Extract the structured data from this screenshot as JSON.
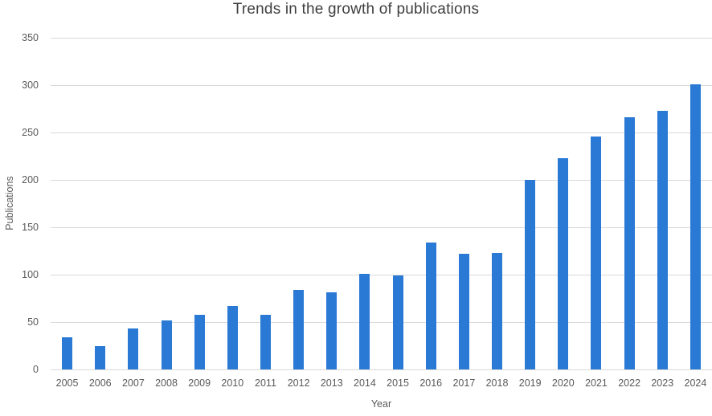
{
  "chart_data": {
    "type": "bar",
    "title": "Trends in the growth of publications",
    "xlabel": "Year",
    "ylabel": "Publications",
    "categories": [
      "2005",
      "2006",
      "2007",
      "2008",
      "2009",
      "2010",
      "2011",
      "2012",
      "2013",
      "2014",
      "2015",
      "2016",
      "2017",
      "2018",
      "2019",
      "2020",
      "2021",
      "2022",
      "2023",
      "2024"
    ],
    "values": [
      34,
      25,
      43,
      52,
      58,
      67,
      58,
      84,
      81,
      101,
      99,
      134,
      122,
      123,
      200,
      223,
      246,
      266,
      273,
      301
    ],
    "ylim": [
      0,
      350
    ],
    "yticks": [
      0,
      50,
      100,
      150,
      200,
      250,
      300,
      350
    ],
    "grid": "horizontal-only",
    "legend": "none"
  },
  "colors": {
    "bar": "#2979d5",
    "gridline": "#d9d9d9",
    "title_text": "#3f3f3f",
    "tick_text": "#595959"
  }
}
